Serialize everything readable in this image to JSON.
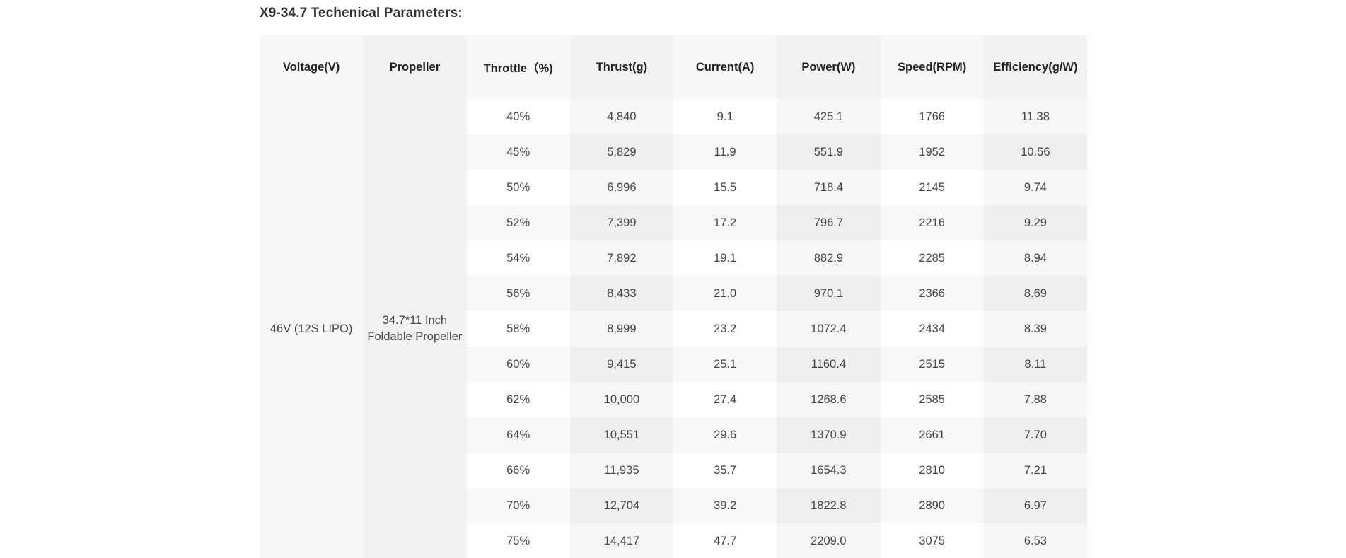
{
  "section": {
    "title": "X9-34.7 Techenical Parameters:"
  },
  "table": {
    "headers": [
      "Voltage(V)",
      "Propeller",
      "Throttle（%)",
      "Thrust(g)",
      "Current(A)",
      "Power(W)",
      "Speed(RPM)",
      "Efficiency(g/W)"
    ],
    "voltage": "46V (12S LIPO)",
    "propeller_line1": "34.7*11 Inch",
    "propeller_line2": "Foldable Propeller",
    "rows": [
      {
        "throttle": "40%",
        "thrust": "4,840",
        "current": "9.1",
        "power": "425.1",
        "speed": "1766",
        "efficiency": "11.38"
      },
      {
        "throttle": "45%",
        "thrust": "5,829",
        "current": "11.9",
        "power": "551.9",
        "speed": "1952",
        "efficiency": "10.56"
      },
      {
        "throttle": "50%",
        "thrust": "6,996",
        "current": "15.5",
        "power": "718.4",
        "speed": "2145",
        "efficiency": "9.74"
      },
      {
        "throttle": "52%",
        "thrust": "7,399",
        "current": "17.2",
        "power": "796.7",
        "speed": "2216",
        "efficiency": "9.29"
      },
      {
        "throttle": "54%",
        "thrust": "7,892",
        "current": "19.1",
        "power": "882.9",
        "speed": "2285",
        "efficiency": "8.94"
      },
      {
        "throttle": "56%",
        "thrust": "8,433",
        "current": "21.0",
        "power": "970.1",
        "speed": "2366",
        "efficiency": "8.69"
      },
      {
        "throttle": "58%",
        "thrust": "8,999",
        "current": "23.2",
        "power": "1072.4",
        "speed": "2434",
        "efficiency": "8.39"
      },
      {
        "throttle": "60%",
        "thrust": "9,415",
        "current": "25.1",
        "power": "1160.4",
        "speed": "2515",
        "efficiency": "8.11"
      },
      {
        "throttle": "62%",
        "thrust": "10,000",
        "current": "27.4",
        "power": "1268.6",
        "speed": "2585",
        "efficiency": "7.88"
      },
      {
        "throttle": "64%",
        "thrust": "10,551",
        "current": "29.6",
        "power": "1370.9",
        "speed": "2661",
        "efficiency": "7.70"
      },
      {
        "throttle": "66%",
        "thrust": "11,935",
        "current": "35.7",
        "power": "1654.3",
        "speed": "2810",
        "efficiency": "7.21"
      },
      {
        "throttle": "70%",
        "thrust": "12,704",
        "current": "39.2",
        "power": "1822.8",
        "speed": "2890",
        "efficiency": "6.97"
      },
      {
        "throttle": "75%",
        "thrust": "14,417",
        "current": "47.7",
        "power": "2209.0",
        "speed": "3075",
        "efficiency": "6.53"
      }
    ]
  }
}
